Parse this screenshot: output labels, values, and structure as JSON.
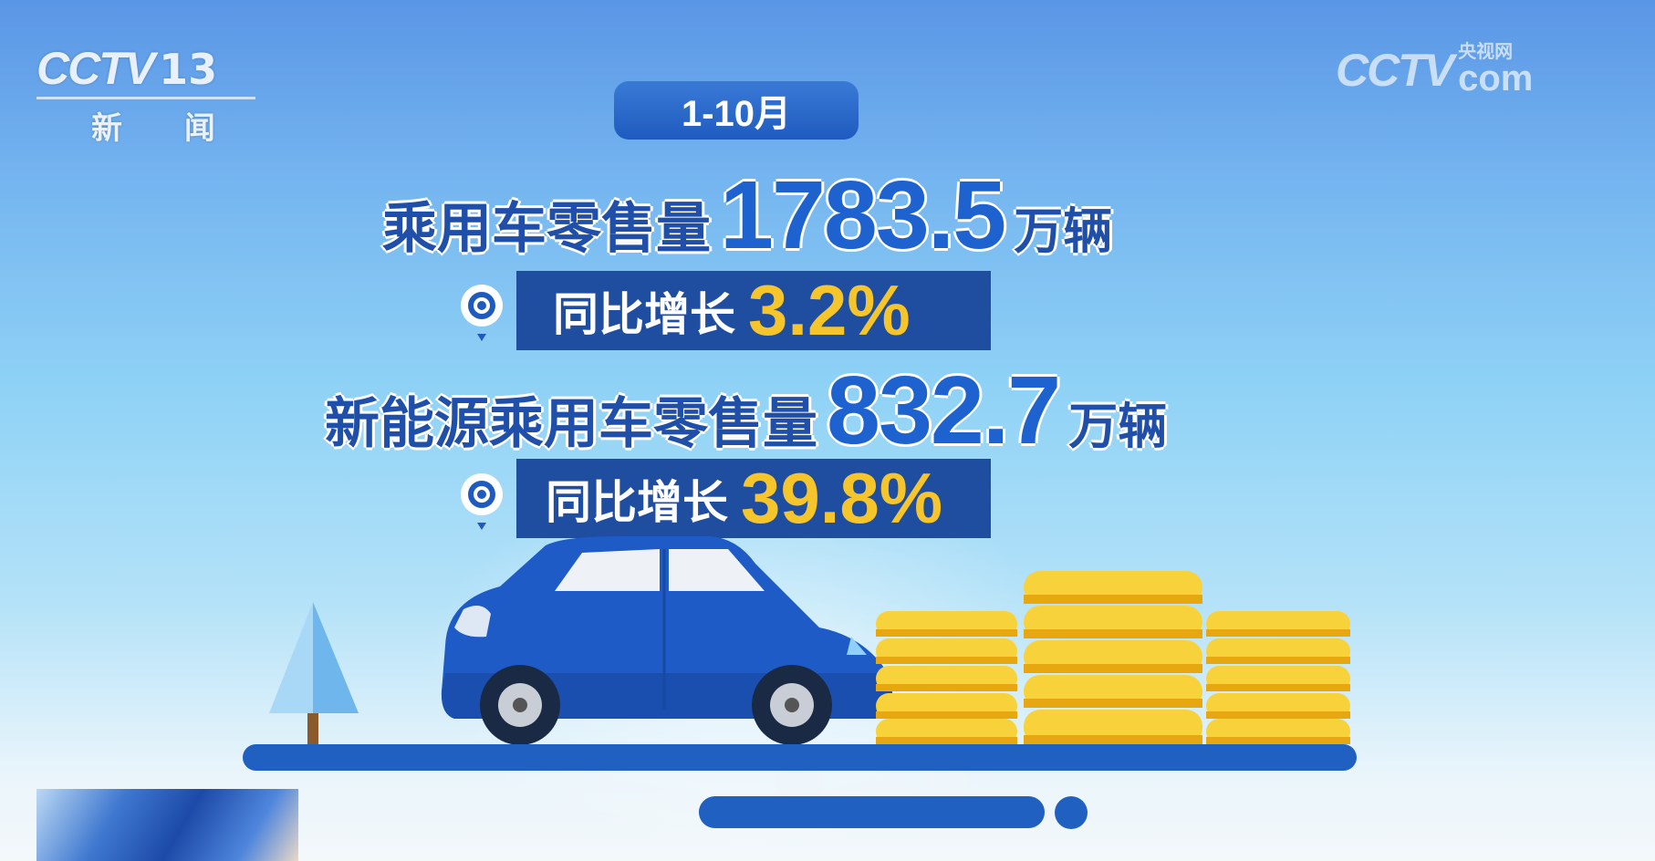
{
  "channel_logo": {
    "brand": "CCTV",
    "channel": "13",
    "name": "新 闻"
  },
  "watermark": {
    "brand": "CCTV",
    "sub": "央视网",
    "domain": "com"
  },
  "period": "1-10月",
  "stats": [
    {
      "label": "乘用车零售量",
      "value": "1783.5",
      "unit": "万辆",
      "growth_label": "同比增长",
      "growth": "3.2%"
    },
    {
      "label": "新能源乘用车零售量",
      "value": "832.7",
      "unit": "万辆",
      "growth_label": "同比增长",
      "growth": "39.8%"
    }
  ],
  "colors": {
    "primary": "#1f4ea0",
    "number": "#1e62d0",
    "highlight": "#f6c52c",
    "coin": "#f2c12e"
  },
  "icons": [
    "location-pin-icon",
    "car-icon",
    "coin-stack-icon",
    "tree-icon"
  ]
}
